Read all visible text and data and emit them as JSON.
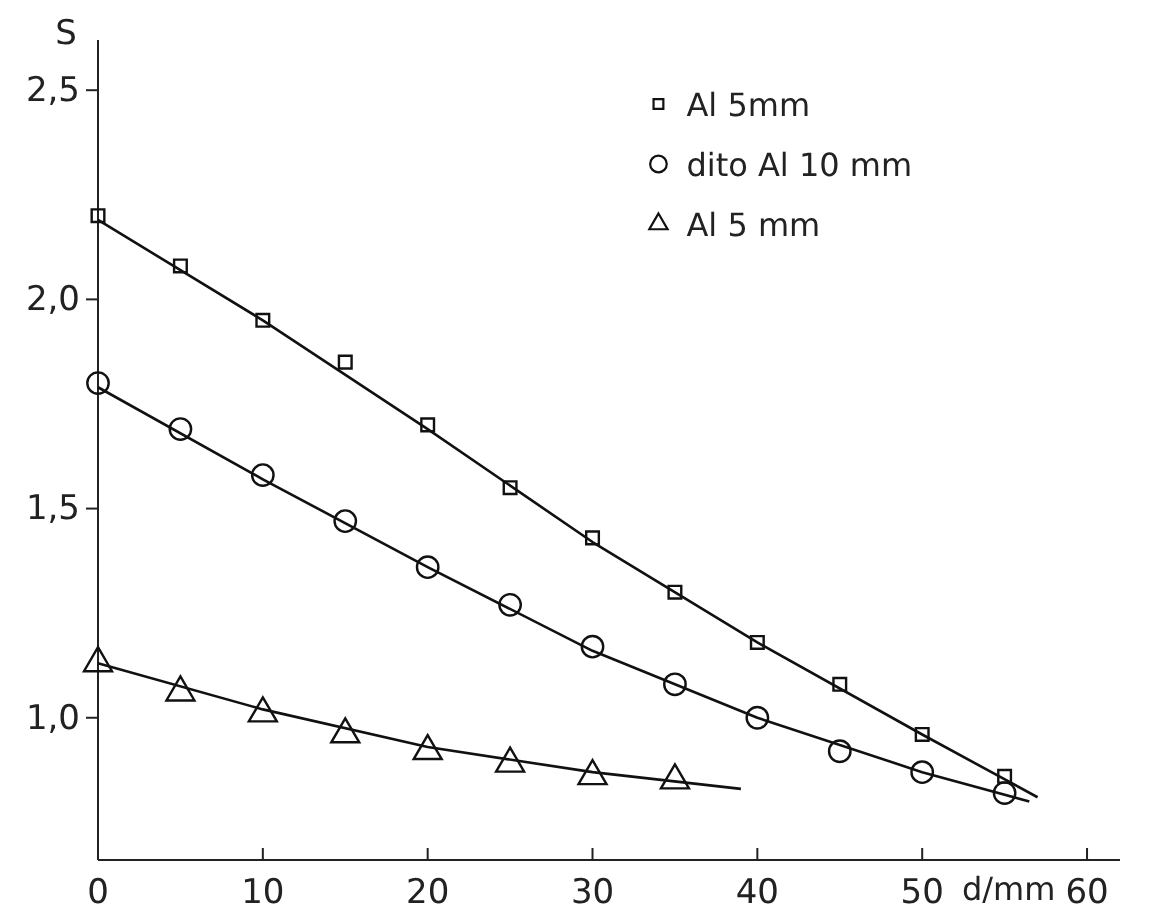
{
  "chart_data": {
    "type": "scatter",
    "xlabel": "d/mm",
    "ylabel": "S",
    "xlim": [
      0,
      62
    ],
    "ylim": [
      0.66,
      2.62
    ],
    "xticks": [
      0,
      10,
      20,
      30,
      40,
      50,
      60
    ],
    "yticks": [
      {
        "value": 1.0,
        "label": "1,0"
      },
      {
        "value": 1.5,
        "label": "1,5"
      },
      {
        "value": 2.0,
        "label": "2,0"
      },
      {
        "value": 2.5,
        "label": "2,5"
      }
    ],
    "grid": false,
    "legend": "top right",
    "series": [
      {
        "name": "Al 5mm",
        "color": "#111111",
        "marker": "square",
        "x": [
          0,
          5,
          10,
          15,
          20,
          25,
          30,
          35,
          40,
          45,
          50,
          55
        ],
        "values": [
          2.2,
          2.08,
          1.95,
          1.85,
          1.7,
          1.55,
          1.43,
          1.3,
          1.18,
          1.08,
          0.96,
          0.86
        ]
      },
      {
        "name": "dito Al 10 mm",
        "color": "#111111",
        "marker": "circle",
        "x": [
          0,
          5,
          10,
          15,
          20,
          25,
          30,
          35,
          40,
          45,
          50,
          55
        ],
        "values": [
          1.8,
          1.69,
          1.58,
          1.47,
          1.36,
          1.27,
          1.17,
          1.08,
          1.0,
          0.92,
          0.87,
          0.82
        ]
      },
      {
        "name": "Al 5 mm",
        "color": "#111111",
        "marker": "triangle",
        "x": [
          0,
          5,
          10,
          15,
          20,
          25,
          30,
          35
        ],
        "values": [
          1.14,
          1.07,
          1.02,
          0.97,
          0.93,
          0.9,
          0.87,
          0.86
        ]
      },
      {
        "type": "line",
        "color": "#111111",
        "marker": "none",
        "x": [
          0,
          10,
          20,
          30,
          40,
          50,
          57
        ],
        "values": [
          2.19,
          1.95,
          1.69,
          1.42,
          1.18,
          0.96,
          0.81
        ]
      },
      {
        "type": "line",
        "color": "#111111",
        "marker": "none",
        "x": [
          0,
          10,
          20,
          30,
          40,
          50,
          56.5
        ],
        "values": [
          1.79,
          1.57,
          1.36,
          1.16,
          1.0,
          0.87,
          0.8
        ]
      },
      {
        "type": "line",
        "color": "#111111",
        "marker": "none",
        "x": [
          0,
          10,
          20,
          30,
          39
        ],
        "values": [
          1.13,
          1.02,
          0.93,
          0.87,
          0.83
        ]
      }
    ]
  }
}
